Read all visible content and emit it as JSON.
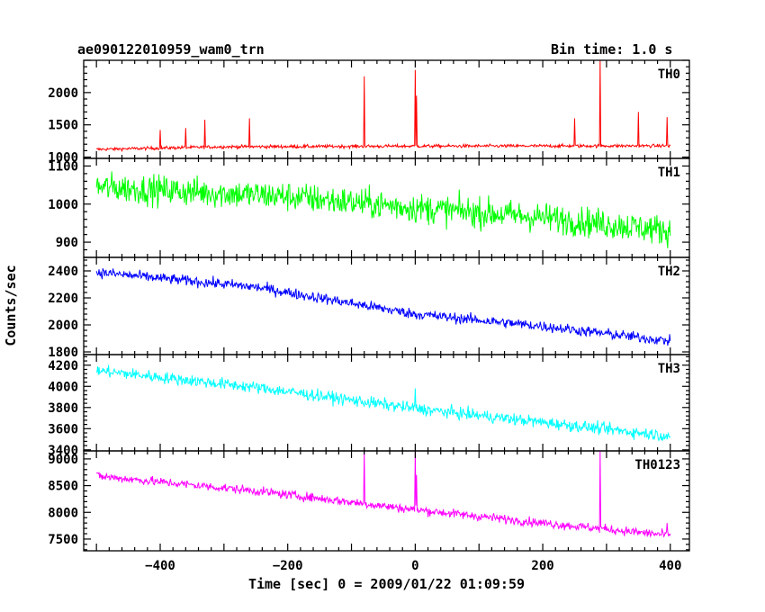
{
  "header": {
    "title": "ae090122010959_wam0_trn",
    "bin_time": "Bin time: 1.0 s"
  },
  "chart_data": {
    "type": "line",
    "title": "ae090122010959_wam0_trn",
    "subtitle": "Bin time: 1.0 s",
    "xlabel": "Time [sec] 0 = 2009/01/22 01:09:59",
    "ylabel": "Counts/sec",
    "xlim": [
      -520,
      430
    ],
    "x_ticks": [
      -400,
      -200,
      0,
      200,
      400
    ],
    "x_tick_labels": [
      "−400",
      "−200",
      "0",
      "200",
      "400"
    ],
    "grid": false,
    "panels": [
      {
        "name": "TH0",
        "color": "#ff0000",
        "ylim": [
          980,
          2500
        ],
        "y_ticks": [
          1000,
          1500,
          2000
        ],
        "trend": [
          [
            -500,
            1120
          ],
          [
            -300,
            1160
          ],
          [
            0,
            1170
          ],
          [
            400,
            1175
          ]
        ],
        "noise": 45,
        "spikes": [
          [
            -400,
            1420
          ],
          [
            -360,
            1450
          ],
          [
            -330,
            1580
          ],
          [
            -260,
            1600
          ],
          [
            -80,
            2250
          ],
          [
            0,
            2350
          ],
          [
            2,
            1950
          ],
          [
            250,
            1600
          ],
          [
            290,
            2500
          ],
          [
            350,
            1700
          ],
          [
            395,
            1620
          ]
        ]
      },
      {
        "name": "TH1",
        "color": "#00ff00",
        "ylim": [
          860,
          1120
        ],
        "y_ticks": [
          900,
          1000,
          1100
        ],
        "trend": [
          [
            -500,
            1045
          ],
          [
            -200,
            1020
          ],
          [
            0,
            990
          ],
          [
            200,
            965
          ],
          [
            400,
            930
          ]
        ],
        "noise": 70,
        "spikes": []
      },
      {
        "name": "TH2",
        "color": "#0000ff",
        "ylim": [
          1780,
          2500
        ],
        "y_ticks": [
          1800,
          2000,
          2200,
          2400
        ],
        "trend": [
          [
            -500,
            2390
          ],
          [
            -250,
            2280
          ],
          [
            0,
            2080
          ],
          [
            200,
            1990
          ],
          [
            400,
            1880
          ]
        ],
        "noise": 70,
        "spikes": []
      },
      {
        "name": "TH3",
        "color": "#00ffff",
        "ylim": [
          3390,
          4300
        ],
        "y_ticks": [
          3400,
          3600,
          3800,
          4000,
          4200
        ],
        "trend": [
          [
            -500,
            4150
          ],
          [
            -250,
            3990
          ],
          [
            0,
            3790
          ],
          [
            200,
            3660
          ],
          [
            400,
            3530
          ]
        ],
        "noise": 100,
        "spikes": [
          [
            0,
            3980
          ]
        ]
      },
      {
        "name": "TH0123",
        "color": "#ff00ff",
        "ylim": [
          7280,
          9150
        ],
        "y_ticks": [
          7500,
          8000,
          8500,
          9000
        ],
        "trend": [
          [
            -500,
            8680
          ],
          [
            -250,
            8400
          ],
          [
            0,
            8050
          ],
          [
            200,
            7800
          ],
          [
            400,
            7570
          ]
        ],
        "noise": 150,
        "spikes": [
          [
            -80,
            9150
          ],
          [
            0,
            9150
          ],
          [
            2,
            8700
          ],
          [
            290,
            9150
          ],
          [
            395,
            7800
          ]
        ]
      }
    ]
  }
}
